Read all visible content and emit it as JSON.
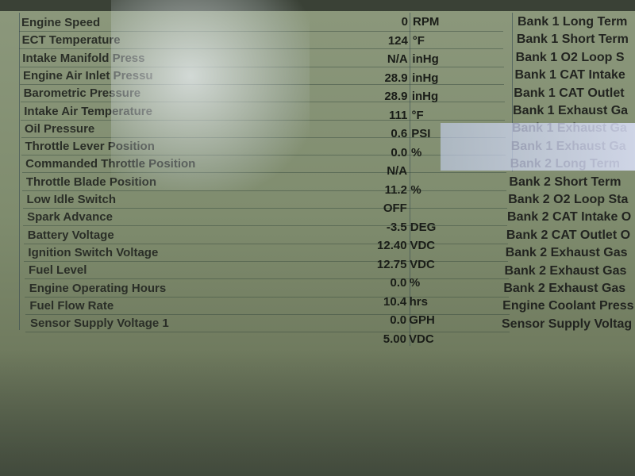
{
  "rows": [
    {
      "label": "Engine Speed",
      "value": "0",
      "unit": "RPM"
    },
    {
      "label": "ECT Temperature",
      "value": "124",
      "unit": "°F"
    },
    {
      "label": "Intake Manifold Press",
      "value": "N/A",
      "unit": "inHg"
    },
    {
      "label": "Engine Air Inlet Pressu",
      "value": "28.9",
      "unit": "inHg"
    },
    {
      "label": "Barometric Pressure",
      "value": "28.9",
      "unit": "inHg"
    },
    {
      "label": "Intake Air Temperature",
      "value": "111",
      "unit": "°F"
    },
    {
      "label": "Oil Pressure",
      "value": "0.6",
      "unit": "PSI"
    },
    {
      "label": "Throttle Lever Position",
      "value": "0.0",
      "unit": "%"
    },
    {
      "label": "Commanded Throttle Position",
      "value": "N/A",
      "unit": ""
    },
    {
      "label": "Throttle Blade Position",
      "value": "11.2",
      "unit": "%"
    },
    {
      "label": "Low Idle Switch",
      "value": "OFF",
      "unit": ""
    },
    {
      "label": "Spark Advance",
      "value": "-3.5",
      "unit": "DEG"
    },
    {
      "label": "Battery Voltage",
      "value": "12.40",
      "unit": "VDC"
    },
    {
      "label": "Ignition Switch Voltage",
      "value": "12.75",
      "unit": "VDC"
    },
    {
      "label": "Fuel Level",
      "value": "0.0",
      "unit": "%"
    },
    {
      "label": "Engine Operating Hours",
      "value": "10.4",
      "unit": "hrs"
    },
    {
      "label": "Fuel Flow Rate",
      "value": "0.0",
      "unit": "GPH"
    },
    {
      "label": "Sensor Supply Voltage 1",
      "value": "5.00",
      "unit": "VDC"
    }
  ],
  "right_rows": [
    "Bank 1 Long Term",
    "Bank 1 Short Term",
    "Bank 1 O2 Loop S",
    "Bank 1 CAT Intake",
    "Bank 1 CAT Outlet",
    "Bank 1 Exhaust Ga",
    "Bank 1 Exhaust Ga",
    "Bank 1 Exhaust Ga",
    "Bank 2 Long Term",
    "Bank 2 Short Term",
    "Bank 2 O2 Loop Sta",
    "Bank 2 CAT Intake O",
    "Bank 2 CAT Outlet O",
    "Bank 2 Exhaust Gas",
    "Bank 2 Exhaust Gas",
    "Bank 2 Exhaust Gas",
    "Engine Coolant Press",
    "Sensor Supply Voltag"
  ]
}
